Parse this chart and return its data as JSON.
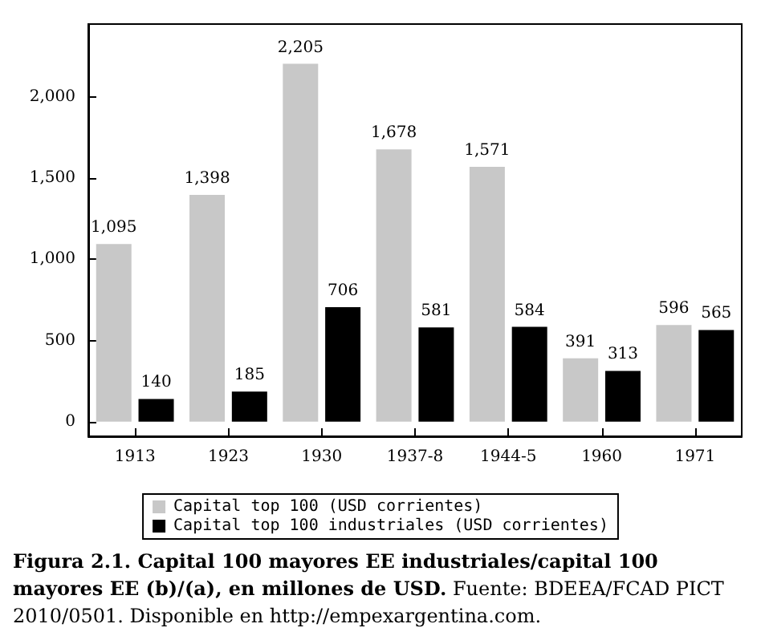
{
  "chart_data": {
    "type": "bar",
    "title": "Figura 2.1. Capital 100 mayores EE industriales/capital 100 mayores EE (b)/(a), en millones de USD.",
    "annotations": [
      "Fuente: BDEEA/FCAD PICT 2010/0501. Disponible en http://empexargentina.com."
    ],
    "categories": [
      "1913",
      "1923",
      "1930",
      "1937-8",
      "1944-5",
      "1960",
      "1971"
    ],
    "series": [
      {
        "name": "Capital top 100 (USD corrientes)",
        "color": "#c8c8c8",
        "values": [
          1095,
          1398,
          2205,
          1678,
          1571,
          391,
          596
        ],
        "value_labels": [
          "1,095",
          "1,398",
          "2,205",
          "1,678",
          "1,571",
          "391",
          "596"
        ]
      },
      {
        "name": "Capital top 100 industriales (USD corrientes)",
        "color": "#000000",
        "values": [
          140,
          185,
          706,
          581,
          584,
          313,
          565
        ],
        "value_labels": [
          "140",
          "185",
          "706",
          "581",
          "584",
          "313",
          "565"
        ]
      }
    ],
    "ylim": [
      -90,
      2450
    ],
    "yticks": [
      0,
      {
        "value": 500,
        "label": "500"
      },
      {
        "value": 1000,
        "label": "1,000"
      },
      {
        "value": 1500,
        "label": "1,500"
      },
      {
        "value": 2000,
        "label": "2,000"
      }
    ],
    "grid": false,
    "legend": "bottom"
  }
}
